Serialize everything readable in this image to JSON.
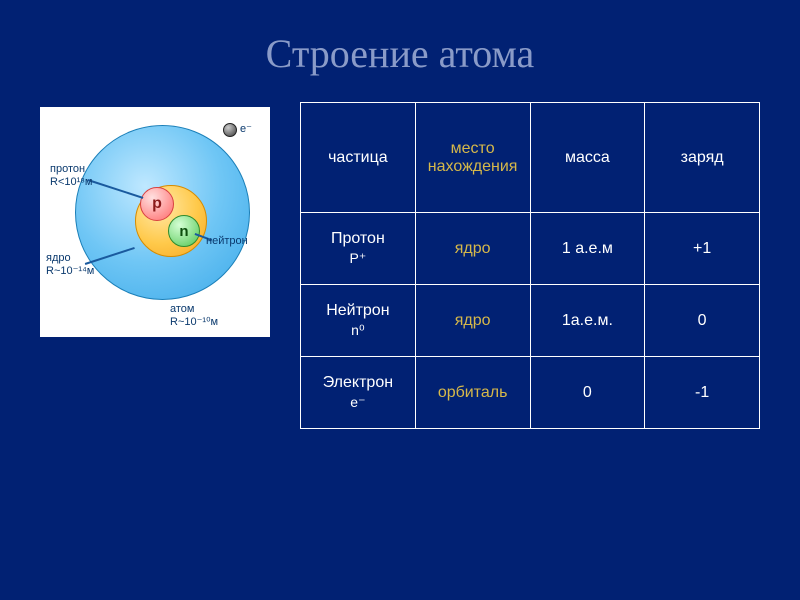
{
  "title": "Строение атома",
  "diagram": {
    "labels": {
      "electron_symbol": "e⁻",
      "proton_line1": "протон",
      "proton_line2": "R<10¹⁸м",
      "nucleus_line1": "ядро",
      "nucleus_line2": "R~10⁻¹⁴м",
      "neutron": "нейтрон",
      "atom_line1": "атом",
      "atom_line2": "R~10⁻¹⁰м",
      "p_glyph": "p",
      "n_glyph": "n"
    },
    "colors": {
      "background": "#ffffff",
      "atom_shell": "#6fc6f5",
      "nucleus": "#ffc94a",
      "proton": "#ff9f9f",
      "neutron": "#8ee08e",
      "electron": "#555555",
      "label_text": "#0b3a6e"
    }
  },
  "table": {
    "columns": [
      "частица",
      "место нахождения",
      "масса",
      "заряд"
    ],
    "column_colors": [
      "#ffffff",
      "#d6b84a",
      "#ffffff",
      "#ffffff"
    ],
    "rows": [
      {
        "particle": "Протон",
        "symbol": "P⁺",
        "location": "ядро",
        "mass": "1 а.е.м",
        "charge": "+1"
      },
      {
        "particle": "Нейтрон",
        "symbol": "n⁰",
        "location": "ядро",
        "mass": "1а.е.м.",
        "charge": "0"
      },
      {
        "particle": "Электрон",
        "symbol": "e⁻",
        "location": "орбиталь",
        "mass": "0",
        "charge": "-1"
      }
    ],
    "border_color": "#ffffff",
    "text_color": "#ffffff",
    "font_size": 16
  },
  "page": {
    "background_color": "#012173",
    "title_color": "#8a9bc8",
    "title_fontsize": 40
  }
}
